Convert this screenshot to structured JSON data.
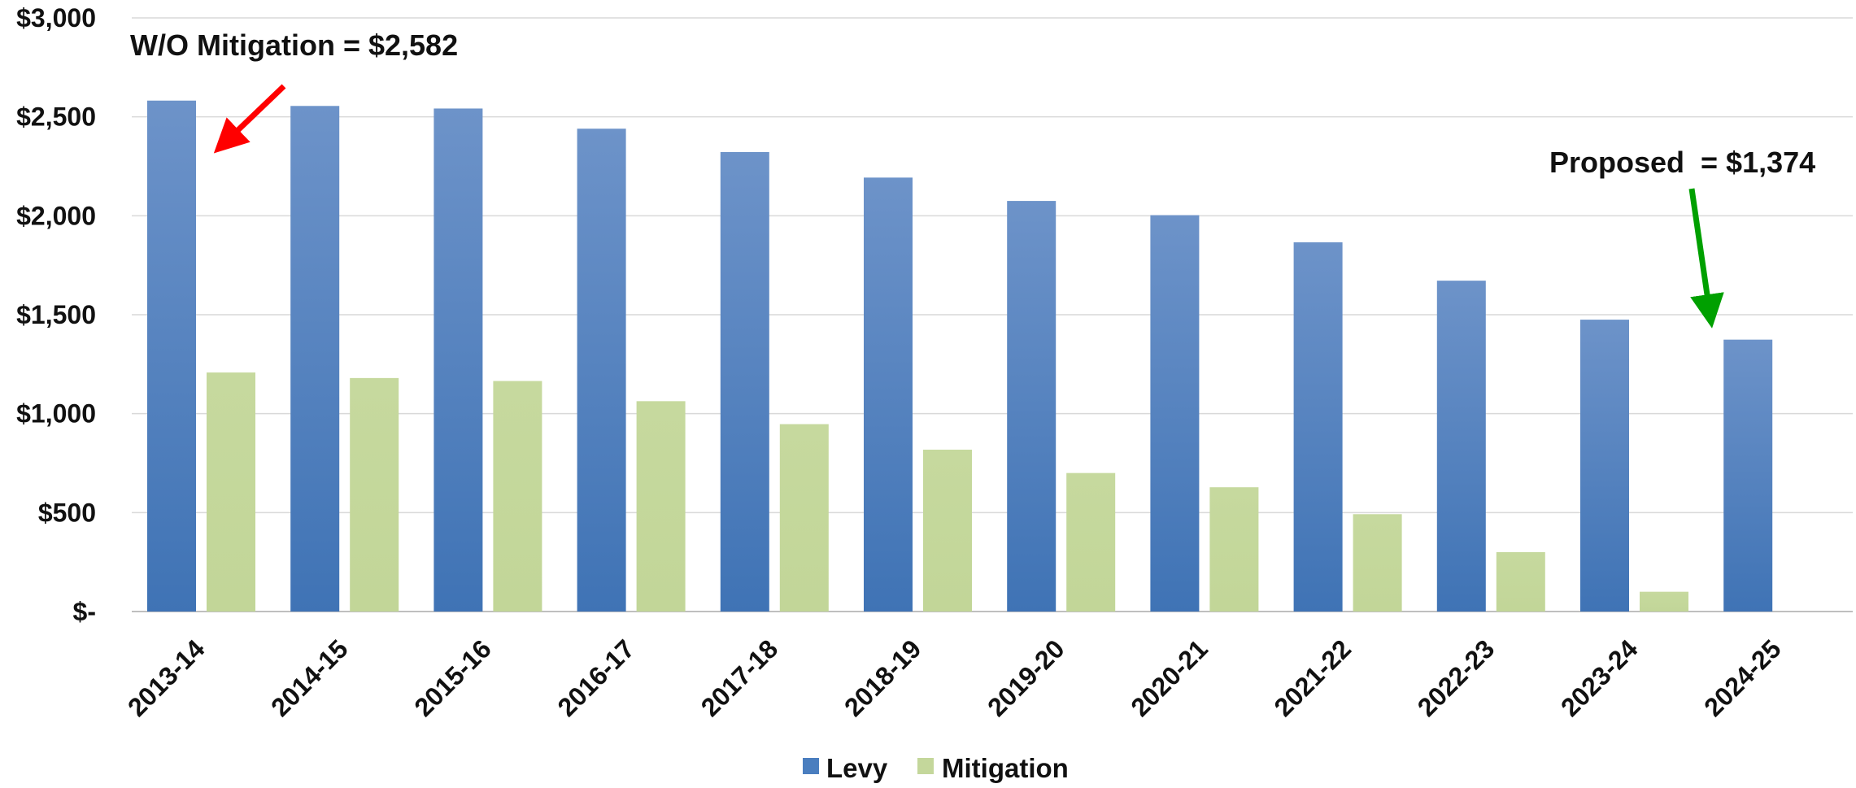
{
  "chart_data": {
    "type": "bar",
    "categories": [
      "2013-14",
      "2014-15",
      "2015-16",
      "2016-17",
      "2017-18",
      "2018-19",
      "2019-20",
      "2020-21",
      "2021-22",
      "2022-23",
      "2023-24",
      "2024-25"
    ],
    "series": [
      {
        "name": "Levy",
        "values": [
          2582,
          2555,
          2542,
          2440,
          2322,
          2193,
          2075,
          2003,
          1866,
          1672,
          1475,
          1374
        ],
        "color": "#4a7ebf"
      },
      {
        "name": "Mitigation",
        "values": [
          1208,
          1180,
          1165,
          1063,
          947,
          818,
          700,
          628,
          492,
          300,
          100,
          0
        ],
        "color": "#c4d79b"
      }
    ],
    "ylim": [
      0,
      3000
    ],
    "yticks": [
      0,
      500,
      1000,
      1500,
      2000,
      2500,
      3000
    ],
    "ytick_labels": [
      "$-",
      "$500",
      "$1,000",
      "$1,500",
      "$2,000",
      "$2,500",
      "$3,000"
    ],
    "grid": true,
    "legend_position": "bottom-center",
    "annotations": [
      {
        "text": "W/O Mitigation = $2,582",
        "arrow_color": "#ff0000",
        "points_to": "2013-14 Levy"
      },
      {
        "text": "Proposed  = $1,374",
        "arrow_color": "#00a000",
        "points_to": "2024-25 Levy"
      }
    ],
    "title": "",
    "xlabel": "",
    "ylabel": ""
  }
}
